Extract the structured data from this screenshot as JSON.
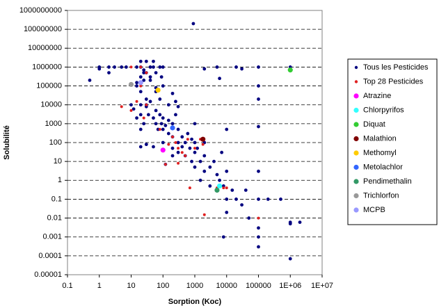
{
  "chart_data": {
    "type": "scatter",
    "x_log": true,
    "y_log": true,
    "grid": true,
    "legend": "right",
    "xlabel": "Sorption (Koc)",
    "ylabel": "Solubilité",
    "xlim": [
      0.1,
      10000000
    ],
    "ylim": [
      1e-05,
      1000000000
    ],
    "xticks": [
      0.1,
      1,
      10,
      100,
      1000,
      10000,
      100000,
      {
        "value": 1000000,
        "label": "1E+06"
      },
      {
        "value": 10000000,
        "label": "1E+07"
      }
    ],
    "yticks": [
      1000000000,
      100000000,
      10000000,
      1000000,
      100000,
      10000,
      1000,
      100,
      10,
      1,
      0.1,
      0.01,
      0.001,
      0.0001,
      1e-05
    ],
    "series": [
      {
        "name": "Tous les Pesticides",
        "color": "#000080",
        "x": [
          1,
          1,
          2,
          3,
          5,
          7,
          0.5,
          2,
          15,
          20,
          20,
          25,
          30,
          40,
          50,
          60,
          80,
          90,
          100,
          50,
          20,
          30,
          15,
          25,
          40,
          900,
          2000,
          5000,
          6000,
          20000,
          30000,
          100000,
          100000,
          100000,
          1000000,
          1000000,
          100000,
          10000,
          15,
          20,
          20,
          20,
          25,
          30,
          30,
          15,
          10,
          12,
          20,
          25,
          35,
          40,
          50,
          60,
          60,
          70,
          80,
          90,
          100,
          100,
          100,
          120,
          150,
          150,
          200,
          200,
          200,
          250,
          300,
          300,
          300,
          400,
          400,
          500,
          500,
          600,
          700,
          800,
          800,
          1000,
          1000,
          1000,
          1200,
          1500,
          1500,
          2000,
          2000,
          2000,
          3000,
          3000,
          4000,
          5000,
          5000,
          6000,
          7000,
          8000,
          10000,
          10000,
          10000,
          15000,
          20000,
          30000,
          40000,
          50000,
          100000,
          100000,
          100000,
          100000,
          100000,
          200000,
          500000,
          1000000,
          1000000,
          2000000,
          1000000,
          8000,
          20,
          30,
          50,
          120,
          200,
          150,
          100,
          80,
          60,
          250,
          1000,
          300,
          60,
          200,
          40,
          30
        ],
        "values": [
          1000000,
          800000,
          500000,
          1000000,
          1000000,
          1000000,
          200000,
          1000000,
          1000000,
          1000000,
          2000000,
          700000,
          2000000,
          1000000,
          1000000,
          500000,
          1000000,
          300000,
          1000000,
          2000000,
          300000,
          500000,
          150000,
          200000,
          300000,
          200000000,
          800000,
          1000000,
          250000,
          1000000,
          800000,
          1000000,
          100000,
          20000,
          1000000,
          700000,
          700,
          500,
          100000,
          50000,
          10000,
          3000,
          500000,
          20000,
          8000,
          2000,
          10000,
          6000,
          500,
          1000,
          3000,
          15000,
          2000,
          5000,
          1000,
          500,
          3000,
          1000,
          2000,
          500,
          100,
          800,
          1500,
          300,
          1000,
          200,
          50,
          3000,
          500,
          100,
          30,
          200,
          60,
          100,
          20,
          300,
          50,
          150,
          10,
          100,
          30,
          5,
          50,
          10,
          1,
          20,
          3,
          100,
          5,
          0.5,
          10,
          2,
          0.3,
          1,
          30,
          0.5,
          0.1,
          3,
          0.02,
          0.3,
          0.1,
          0.05,
          0.3,
          0.01,
          0.1,
          3,
          0.001,
          0.003,
          0.0003,
          0.1,
          0.1,
          0.006,
          0.005,
          0.006,
          7e-05,
          0.001,
          60,
          80,
          60,
          7,
          20,
          10000,
          100000,
          20000,
          50000,
          15000,
          1000,
          8000,
          80000,
          40000,
          200000,
          10000
        ]
      },
      {
        "name": "Top 28 Pesticides",
        "color": "#e02020",
        "x": [
          10,
          20,
          30,
          20,
          5,
          10,
          15,
          25,
          30,
          80,
          120,
          150,
          200,
          250,
          300,
          400,
          500,
          600,
          1000,
          1500,
          1800,
          2000,
          5000,
          8000,
          10000,
          100000,
          300,
          700
        ],
        "values": [
          1000000,
          1000000,
          500000,
          100000,
          8000,
          5000,
          15000,
          2000,
          10000,
          500,
          7,
          80,
          200,
          100,
          50,
          30,
          20,
          150,
          50,
          150,
          80,
          0.015,
          0.4,
          0.4,
          0.4,
          0.01,
          8,
          0.4
        ]
      },
      {
        "name": "Atrazine",
        "color": "#ff00ff",
        "x": [
          100
        ],
        "values": [
          40
        ]
      },
      {
        "name": "Chlorpyrifos",
        "color": "#33ffff",
        "x": [
          6000
        ],
        "values": [
          0.5
        ]
      },
      {
        "name": "Diquat",
        "color": "#33cc33",
        "x": [
          1000000
        ],
        "values": [
          700000
        ]
      },
      {
        "name": "Malathion",
        "color": "#800000",
        "x": [
          1800
        ],
        "values": [
          150
        ]
      },
      {
        "name": "Methomyl",
        "color": "#ffcc00",
        "x": [
          70
        ],
        "values": [
          60000
        ]
      },
      {
        "name": "Metolachlor",
        "color": "#3366ff",
        "x": [
          200
        ],
        "values": [
          600
        ]
      },
      {
        "name": "Pendimethalin",
        "color": "#339966",
        "x": [
          5000
        ],
        "values": [
          0.3
        ]
      },
      {
        "name": "Trichlorfon",
        "color": "#999999",
        "x": [
          10
        ],
        "values": [
          120000
        ]
      },
      {
        "name": "MCPB",
        "color": "#9999ff",
        "x": [
          20
        ],
        "values": [
          150000
        ]
      }
    ]
  }
}
